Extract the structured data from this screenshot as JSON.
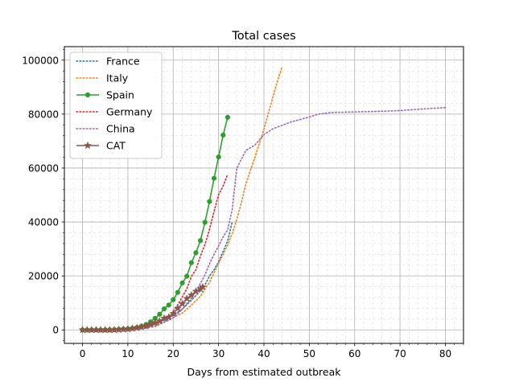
{
  "chart_data": {
    "type": "line",
    "title": "Total cases",
    "xlabel": "Days from estimated outbreak",
    "ylabel": "",
    "xlim": [
      -4,
      84
    ],
    "ylim": [
      -5000,
      105000
    ],
    "x_ticks": [
      0,
      10,
      20,
      30,
      40,
      50,
      60,
      70,
      80
    ],
    "y_ticks": [
      0,
      20000,
      40000,
      60000,
      80000,
      100000
    ],
    "grid": {
      "major": true,
      "minor": true
    },
    "legend_position": "upper-left",
    "series": [
      {
        "name": "France",
        "color": "#1f77b4",
        "style": "dotted",
        "marker": "none",
        "points": [
          [
            0,
            0
          ],
          [
            2,
            10
          ],
          [
            4,
            20
          ],
          [
            6,
            60
          ],
          [
            8,
            120
          ],
          [
            10,
            200
          ],
          [
            12,
            420
          ],
          [
            14,
            1000
          ],
          [
            16,
            2000
          ],
          [
            18,
            3600
          ],
          [
            20,
            5400
          ],
          [
            22,
            7700
          ],
          [
            24,
            11000
          ],
          [
            26,
            14500
          ],
          [
            27,
            16700
          ],
          [
            28,
            20000
          ],
          [
            29,
            22300
          ],
          [
            30,
            25200
          ],
          [
            31,
            29100
          ],
          [
            32,
            32900
          ],
          [
            33,
            40000
          ]
        ]
      },
      {
        "name": "Italy",
        "color": "#ff7f0e",
        "style": "dotted",
        "marker": "none",
        "points": [
          [
            0,
            0
          ],
          [
            4,
            20
          ],
          [
            8,
            80
          ],
          [
            10,
            200
          ],
          [
            12,
            400
          ],
          [
            14,
            900
          ],
          [
            16,
            1700
          ],
          [
            18,
            3000
          ],
          [
            20,
            4600
          ],
          [
            22,
            6200
          ],
          [
            24,
            9200
          ],
          [
            26,
            12500
          ],
          [
            27,
            15100
          ],
          [
            28,
            17700
          ],
          [
            29,
            21200
          ],
          [
            30,
            24700
          ],
          [
            31,
            27900
          ],
          [
            32,
            31500
          ],
          [
            33,
            35700
          ],
          [
            34,
            41000
          ],
          [
            35,
            47000
          ],
          [
            36,
            54000
          ],
          [
            37,
            59100
          ],
          [
            38,
            63900
          ],
          [
            39,
            69200
          ],
          [
            40,
            74400
          ],
          [
            41,
            80500
          ],
          [
            42,
            86500
          ],
          [
            43,
            92500
          ],
          [
            44,
            97500
          ]
        ]
      },
      {
        "name": "Spain",
        "color": "#2ca02c",
        "style": "solid",
        "marker": "circle",
        "points": [
          [
            0,
            0
          ],
          [
            1,
            0
          ],
          [
            2,
            0
          ],
          [
            3,
            0
          ],
          [
            4,
            0
          ],
          [
            5,
            0
          ],
          [
            6,
            0
          ],
          [
            7,
            100
          ],
          [
            8,
            200
          ],
          [
            9,
            300
          ],
          [
            10,
            400
          ],
          [
            11,
            600
          ],
          [
            12,
            900
          ],
          [
            13,
            1400
          ],
          [
            14,
            2000
          ],
          [
            15,
            3000
          ],
          [
            16,
            4300
          ],
          [
            17,
            5800
          ],
          [
            18,
            7800
          ],
          [
            19,
            9200
          ],
          [
            20,
            11200
          ],
          [
            21,
            13900
          ],
          [
            22,
            17400
          ],
          [
            23,
            19900
          ],
          [
            24,
            24900
          ],
          [
            25,
            28600
          ],
          [
            26,
            33100
          ],
          [
            27,
            39900
          ],
          [
            28,
            47600
          ],
          [
            29,
            56200
          ],
          [
            30,
            64100
          ],
          [
            31,
            72200
          ],
          [
            32,
            78800
          ]
        ]
      },
      {
        "name": "Germany",
        "color": "#d62728",
        "style": "dotted",
        "marker": "none",
        "points": [
          [
            0,
            0
          ],
          [
            4,
            20
          ],
          [
            8,
            100
          ],
          [
            10,
            300
          ],
          [
            12,
            600
          ],
          [
            14,
            1300
          ],
          [
            16,
            2500
          ],
          [
            18,
            4000
          ],
          [
            19,
            5200
          ],
          [
            20,
            6900
          ],
          [
            21,
            9300
          ],
          [
            22,
            12300
          ],
          [
            23,
            15300
          ],
          [
            24,
            19800
          ],
          [
            25,
            22300
          ],
          [
            26,
            27400
          ],
          [
            27,
            31700
          ],
          [
            28,
            37300
          ],
          [
            29,
            43900
          ],
          [
            30,
            50100
          ],
          [
            31,
            53300
          ],
          [
            32,
            57700
          ]
        ]
      },
      {
        "name": "China",
        "color": "#9467bd",
        "style": "dotted",
        "marker": "none",
        "points": [
          [
            0,
            0
          ],
          [
            4,
            40
          ],
          [
            8,
            200
          ],
          [
            10,
            400
          ],
          [
            12,
            550
          ],
          [
            14,
            650
          ],
          [
            16,
            1300
          ],
          [
            18,
            2800
          ],
          [
            20,
            4500
          ],
          [
            21,
            6000
          ],
          [
            22,
            7700
          ],
          [
            23,
            9700
          ],
          [
            24,
            11800
          ],
          [
            25,
            14400
          ],
          [
            26,
            17200
          ],
          [
            27,
            20400
          ],
          [
            28,
            24500
          ],
          [
            29,
            28000
          ],
          [
            30,
            31100
          ],
          [
            31,
            34500
          ],
          [
            32,
            37100
          ],
          [
            33,
            44600
          ],
          [
            34,
            59800
          ],
          [
            36,
            66500
          ],
          [
            38,
            68500
          ],
          [
            40,
            72400
          ],
          [
            42,
            74600
          ],
          [
            44,
            75800
          ],
          [
            46,
            77100
          ],
          [
            48,
            78000
          ],
          [
            50,
            78900
          ],
          [
            52,
            80000
          ],
          [
            55,
            80600
          ],
          [
            60,
            80800
          ],
          [
            65,
            81000
          ],
          [
            70,
            81300
          ],
          [
            75,
            81900
          ],
          [
            80,
            82400
          ]
        ]
      },
      {
        "name": "CAT",
        "color": "#8c564b",
        "style": "solid",
        "marker": "star",
        "points": [
          [
            0,
            0
          ],
          [
            1,
            0
          ],
          [
            2,
            0
          ],
          [
            3,
            0
          ],
          [
            4,
            0
          ],
          [
            5,
            0
          ],
          [
            6,
            0
          ],
          [
            7,
            0
          ],
          [
            8,
            100
          ],
          [
            9,
            200
          ],
          [
            10,
            300
          ],
          [
            11,
            500
          ],
          [
            12,
            700
          ],
          [
            13,
            1000
          ],
          [
            14,
            1400
          ],
          [
            15,
            2000
          ],
          [
            16,
            2700
          ],
          [
            17,
            3300
          ],
          [
            18,
            4300
          ],
          [
            19,
            4700
          ],
          [
            20,
            6000
          ],
          [
            21,
            8000
          ],
          [
            22,
            9700
          ],
          [
            23,
            11600
          ],
          [
            24,
            12900
          ],
          [
            25,
            14300
          ],
          [
            26,
            15200
          ],
          [
            26.5,
            15900
          ]
        ]
      }
    ]
  }
}
